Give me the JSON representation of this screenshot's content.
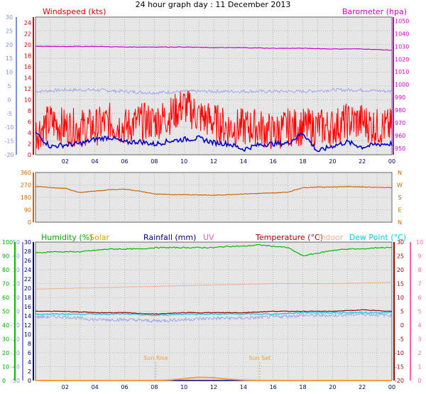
{
  "title": "24 hour graph day : 11 December 2013",
  "colors": {
    "windspeed": "#ff0000",
    "gust_avg": "#0000cc",
    "barometer": "#cc00cc",
    "wind_chill": "#a0a8ee",
    "direction": "#cc6600",
    "humidity": "#00bb00",
    "solar": "#f4a040",
    "rainfall": "#000080",
    "uv": "#cc66cc",
    "temperature": "#990000",
    "indoor": "#f0b090",
    "dew_point": "#00c8e8",
    "plot_bg": "#e6e6e6",
    "grid": "#999999"
  },
  "chart_data": [
    {
      "type": "line",
      "panel": "wind",
      "legend": {
        "windspeed": "Windspeed (kts)",
        "barometer": "Barometer (hpa)"
      },
      "x_ticks": [
        "02",
        "04",
        "06",
        "08",
        "10",
        "12",
        "14",
        "16",
        "18",
        "20",
        "22",
        "00"
      ],
      "left_axis_outer": {
        "ticks": [
          "30",
          "25",
          "20",
          "15",
          "10",
          "5",
          "0",
          "-5",
          "-10",
          "-15",
          "-20"
        ],
        "range": [
          -20,
          30
        ]
      },
      "left_axis_inner": {
        "label": "Windspeed (kts)",
        "ticks": [
          "24",
          "22",
          "20",
          "18",
          "16",
          "14",
          "12",
          "10",
          "8",
          "6",
          "4",
          "2",
          "0"
        ],
        "range": [
          0,
          25
        ]
      },
      "right_axis": {
        "label": "Barometer (hpa)",
        "ticks": [
          "1050",
          "1040",
          "1030",
          "1020",
          "1010",
          "1000",
          "990",
          "980",
          "970",
          "960",
          "950"
        ],
        "range": [
          945,
          1053
        ]
      },
      "series": [
        {
          "key": "windspeed",
          "axis": "inner",
          "x": [
            0,
            1,
            2,
            3,
            4,
            5,
            6,
            7,
            8,
            9,
            10,
            11,
            12,
            13,
            14,
            15,
            16,
            17,
            18,
            19,
            20,
            21,
            22,
            23,
            24
          ],
          "values": [
            4,
            6,
            5,
            5,
            5,
            6,
            5,
            6,
            6,
            7,
            9,
            7,
            6,
            5,
            5,
            5,
            4,
            5,
            5,
            5,
            5,
            6,
            6,
            5,
            5
          ]
        },
        {
          "key": "gust_avg",
          "axis": "inner",
          "x": [
            0,
            1,
            2,
            3,
            4,
            5,
            6,
            7,
            8,
            9,
            10,
            11,
            12,
            13,
            14,
            15,
            16,
            17,
            18,
            19,
            20,
            21,
            22,
            23,
            24
          ],
          "values": [
            4,
            1.5,
            1.8,
            2,
            2.8,
            3.2,
            2.2,
            2.4,
            1.9,
            2.5,
            2.8,
            3,
            2.2,
            2,
            1,
            1.8,
            2,
            2.1,
            4,
            0.6,
            1.6,
            2.3,
            1.4,
            1.9,
            2
          ]
        },
        {
          "key": "barometer",
          "axis": "right",
          "x": [
            0,
            2,
            4,
            6,
            8,
            10,
            12,
            14,
            16,
            18,
            20,
            22,
            24
          ],
          "values": [
            1030,
            1030,
            1030,
            1029.5,
            1029.5,
            1029.5,
            1029,
            1029,
            1028.5,
            1028.5,
            1028,
            1028,
            1027
          ]
        },
        {
          "key": "wind_chill",
          "axis": "outer",
          "x": [
            0,
            2,
            4,
            6,
            8,
            10,
            12,
            14,
            16,
            18,
            20,
            22,
            24
          ],
          "values": [
            3,
            3.5,
            3.5,
            3,
            2.5,
            3,
            3,
            3,
            3,
            3,
            3.5,
            3.5,
            3
          ]
        }
      ]
    },
    {
      "type": "line",
      "panel": "direction",
      "left_axis": {
        "ticks": [
          "360",
          "270",
          "180",
          "90",
          "0"
        ],
        "range": [
          0,
          360
        ]
      },
      "right_axis": {
        "ticks": [
          "N",
          "W",
          "S",
          "E",
          "N"
        ]
      },
      "series": [
        {
          "key": "direction",
          "x": [
            0,
            1,
            2,
            3,
            4,
            5,
            6,
            7,
            8,
            9,
            10,
            11,
            12,
            13,
            14,
            15,
            16,
            17,
            18,
            19,
            20,
            21,
            22,
            23,
            24
          ],
          "values": [
            260,
            250,
            245,
            215,
            225,
            235,
            240,
            225,
            205,
            200,
            200,
            198,
            195,
            200,
            205,
            208,
            212,
            218,
            250,
            255,
            255,
            258,
            256,
            253,
            250
          ]
        }
      ]
    },
    {
      "type": "line",
      "panel": "temperature",
      "legend": {
        "humidity": "Humidity (%)",
        "solar": "Solar",
        "rainfall": "Rainfall (mm)",
        "uv": "UV",
        "temperature": "Temperature (°C)",
        "indoor": "Indoor",
        "dew_point": "Dew Point (°C)"
      },
      "x_ticks": [
        "02",
        "04",
        "06",
        "08",
        "10",
        "12",
        "14",
        "16",
        "18",
        "20",
        "22",
        "00"
      ],
      "humidity_axis": {
        "ticks": [
          "100",
          "90",
          "80",
          "70",
          "60",
          "50",
          "40",
          "30",
          "20",
          "10",
          "0"
        ],
        "range": [
          0,
          100
        ]
      },
      "rain_axis": {
        "ticks": [
          "30",
          "28",
          "26",
          "24",
          "22",
          "20",
          "18",
          "16",
          "14",
          "12",
          "10",
          "8",
          "6",
          "4",
          "2",
          "0"
        ],
        "range": [
          0,
          30
        ]
      },
      "outer_left_axis": {
        "ticks": [
          "50",
          "40",
          "30",
          "20",
          "10",
          "0",
          "-10",
          "-20",
          "-30",
          "-40",
          "-50"
        ],
        "range": [
          -50,
          50
        ]
      },
      "temp_axis": {
        "ticks": [
          "30",
          "25",
          "20",
          "15",
          "10",
          "5",
          "0",
          "-5",
          "-10",
          "-15",
          "-20"
        ],
        "range": [
          -20,
          30
        ]
      },
      "uv_axis": {
        "ticks": [
          "10",
          "9",
          "8",
          "7",
          "6",
          "5",
          "4",
          "3",
          "2",
          "1",
          "0"
        ],
        "range": [
          0,
          10
        ]
      },
      "annotations": [
        {
          "label": "Sun Rise",
          "x": 8.1
        },
        {
          "label": "Sun Set",
          "x": 15.1
        }
      ],
      "series": [
        {
          "key": "humidity",
          "axis": "humidity",
          "x": [
            0,
            1,
            2,
            3,
            4,
            5,
            6,
            7,
            8,
            9,
            10,
            11,
            12,
            13,
            14,
            15,
            16,
            17,
            18,
            19,
            20,
            21,
            22,
            23,
            24
          ],
          "values": [
            92,
            93,
            93,
            93,
            94,
            95,
            95,
            95,
            96,
            96,
            96,
            96,
            96,
            97,
            97,
            98,
            97,
            96,
            90,
            92,
            94,
            95,
            95,
            96,
            96
          ]
        },
        {
          "key": "temperature",
          "axis": "temp",
          "x": [
            0,
            2,
            4,
            6,
            8,
            10,
            12,
            14,
            16,
            18,
            20,
            22,
            24
          ],
          "values": [
            5,
            5,
            4.5,
            4.5,
            4,
            4.5,
            4.5,
            4.5,
            5,
            5,
            5,
            5.5,
            5
          ]
        },
        {
          "key": "dew_point",
          "axis": "temp",
          "x": [
            0,
            2,
            4,
            6,
            8,
            10,
            12,
            14,
            16,
            18,
            20,
            22,
            24
          ],
          "values": [
            4,
            4,
            4,
            4,
            3.5,
            4,
            4,
            4,
            4,
            4.5,
            4.5,
            4.5,
            4.5
          ]
        },
        {
          "key": "indoor",
          "axis": "temp",
          "x": [
            0,
            4,
            8,
            12,
            16,
            20,
            24
          ],
          "values": [
            13,
            13.5,
            14,
            14.5,
            15,
            15,
            15.5
          ]
        },
        {
          "key": "wind_chill",
          "axis": "temp",
          "x": [
            0,
            2,
            4,
            6,
            8,
            10,
            12,
            14,
            16,
            18,
            20,
            22,
            24
          ],
          "values": [
            3,
            3,
            2,
            2,
            1.5,
            2,
            2.5,
            2.5,
            3,
            3.5,
            3.5,
            4,
            3.5
          ]
        },
        {
          "key": "rainfall",
          "axis": "rain",
          "x": [
            0,
            24
          ],
          "values": [
            0,
            0
          ]
        },
        {
          "key": "solar",
          "axis": "rain",
          "x": [
            8,
            9,
            10,
            11,
            12,
            13,
            14,
            15
          ],
          "values": [
            0,
            0.1,
            0.4,
            0.7,
            0.6,
            0.3,
            0.1,
            0
          ]
        }
      ]
    }
  ]
}
